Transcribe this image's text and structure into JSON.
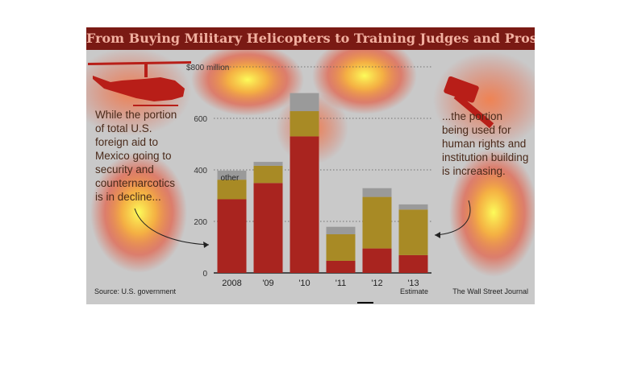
{
  "title": "From Buying Military Helicopters to Training Judges and Prosecutors",
  "left_note": "While the portion of total U.S. foreign aid to Mexico going to security and counternarcotics is in decline...",
  "right_note": "...the portion being used for human rights and institution building is increasing.",
  "source": "Source: U.S. government",
  "credit": "The Wall Street Journal",
  "estimate_label": "Estimate",
  "icons": [
    "helicopter-icon",
    "gavel-icon"
  ],
  "colors": {
    "security": "#a9241f",
    "institution": "#a88a25",
    "other": "#9a9a9a",
    "title_bar": "#7a1a14"
  },
  "chart_data": {
    "type": "bar",
    "stacked": true,
    "categories": [
      "2008",
      "'09",
      "'10",
      "'11",
      "'12",
      "'13"
    ],
    "series": [
      {
        "name": "",
        "values": [
          286,
          349,
          530,
          47,
          95,
          69
        ]
      },
      {
        "name": "",
        "values": [
          76,
          67,
          98,
          103,
          200,
          177
        ]
      },
      {
        "name": "other",
        "values": [
          35,
          15,
          70,
          29,
          34,
          20
        ]
      }
    ],
    "yticks": [
      0,
      200,
      400,
      600,
      "$800 million"
    ],
    "ylim": [
      0,
      800
    ],
    "other_label": "other"
  }
}
